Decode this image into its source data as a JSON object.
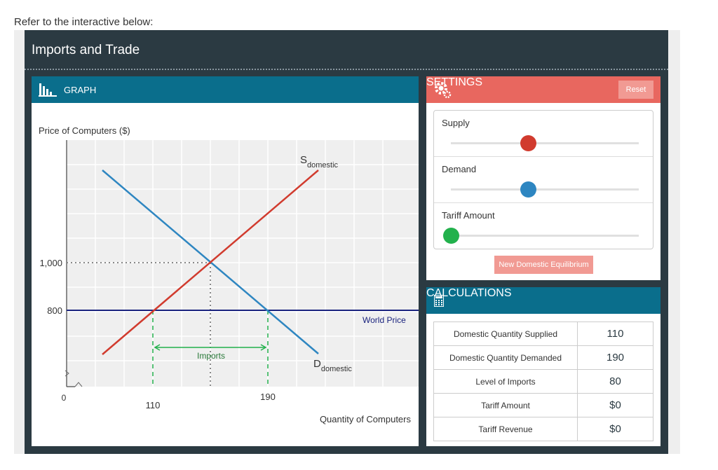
{
  "prompt": "Refer to the interactive below:",
  "app": {
    "title": "Imports and Trade"
  },
  "graph": {
    "header": "GRAPH",
    "y_axis_label": "Price of Computers ($)",
    "x_axis_label": "Quantity of Computers",
    "y_ticks": [
      "1,000",
      "800"
    ],
    "x_ticks": [
      "110",
      "190"
    ],
    "origin": "0",
    "supply_label": "S",
    "supply_sub": "domestic",
    "demand_label": "D",
    "demand_sub": "domestic",
    "world_price_label": "World Price",
    "imports_label": "Imports",
    "colors": {
      "supply": "#d13b2e",
      "demand": "#2e86c1",
      "world": "#1a237e",
      "imports": "#22b14c"
    }
  },
  "settings": {
    "header": "SETTINGS",
    "reset_label": "Reset",
    "supply_label": "Supply",
    "supply_value": 0.41,
    "demand_label": "Demand",
    "demand_value": 0.41,
    "tariff_label": "Tariff Amount",
    "tariff_value": 0,
    "new_eq_label": "New Domestic Equilibrium"
  },
  "calculations": {
    "header": "CALCULATIONS",
    "rows": [
      {
        "label": "Domestic Quantity Supplied",
        "value": "110"
      },
      {
        "label": "Domestic Quantity Demanded",
        "value": "190"
      },
      {
        "label": "Level of Imports",
        "value": "80"
      },
      {
        "label": "Tariff Amount",
        "value": "$0"
      },
      {
        "label": "Tariff Revenue",
        "value": "$0"
      }
    ]
  }
}
